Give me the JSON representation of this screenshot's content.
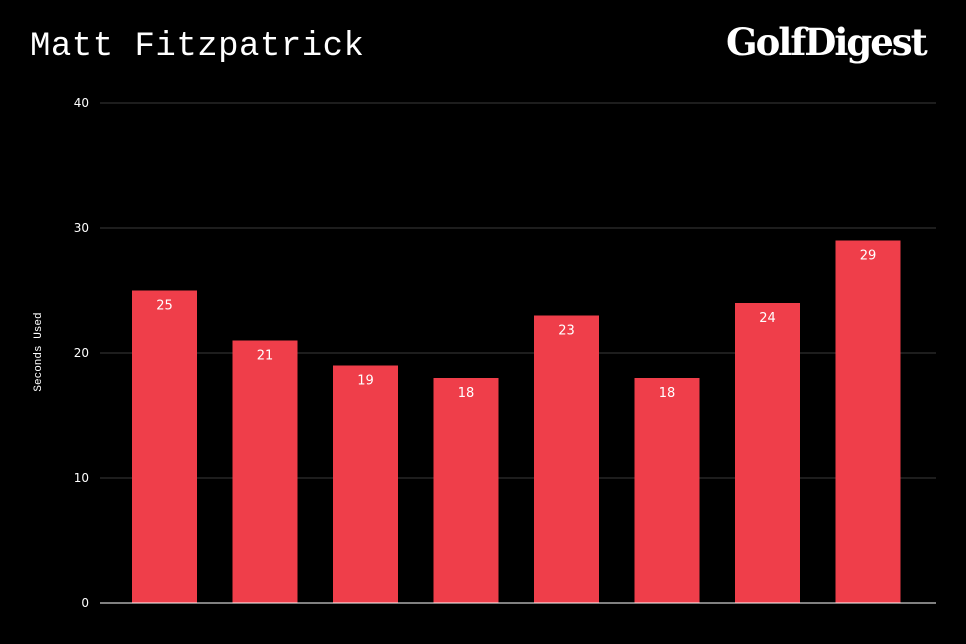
{
  "header": {
    "title": "Matt Fitzpatrick",
    "logo_text": "GolfDigest"
  },
  "colors": {
    "background": "#000000",
    "bar": "#ef3e4a",
    "gridline": "#3a3a3a",
    "text": "#ffffff"
  },
  "chart_data": {
    "type": "bar",
    "title": "Matt Fitzpatrick",
    "xlabel": "",
    "ylabel": "Seconds Used",
    "categories": [
      "",
      "",
      "",
      "",
      "",
      "",
      "",
      ""
    ],
    "values": [
      25,
      21,
      19,
      18,
      23,
      18,
      24,
      29
    ],
    "ylim": [
      0,
      40
    ],
    "yticks": [
      0,
      10,
      20,
      30,
      40
    ],
    "grid": true,
    "data_labels": true
  }
}
